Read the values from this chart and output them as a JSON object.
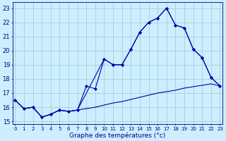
{
  "title": "Graphe des températures (°c)",
  "background_color": "#cceeff",
  "grid_color": "#99cccc",
  "line_color": "#0000aa",
  "x_hours": [
    0,
    1,
    2,
    3,
    4,
    5,
    6,
    7,
    8,
    9,
    10,
    11,
    12,
    13,
    14,
    15,
    16,
    17,
    18,
    19,
    20,
    21,
    22,
    23
  ],
  "line1_y": [
    16.5,
    15.9,
    16.0,
    15.3,
    15.5,
    15.8,
    15.7,
    15.8,
    17.5,
    17.3,
    19.4,
    19.0,
    19.0,
    20.1,
    21.3,
    22.0,
    22.3,
    23.0,
    21.8,
    21.6,
    20.1,
    19.5,
    18.1,
    17.5
  ],
  "line2_x": [
    0,
    1,
    2,
    3,
    4,
    5,
    6,
    7,
    10,
    11,
    12,
    13,
    14,
    15,
    16,
    17,
    18,
    19,
    20,
    21,
    22,
    23
  ],
  "line2_y": [
    16.5,
    15.9,
    16.0,
    15.3,
    15.5,
    15.8,
    15.7,
    15.8,
    19.4,
    19.0,
    19.0,
    20.1,
    21.3,
    22.0,
    22.3,
    23.0,
    21.8,
    21.6,
    20.1,
    19.5,
    18.1,
    17.5
  ],
  "line3_y": [
    16.5,
    15.9,
    16.0,
    15.3,
    15.5,
    15.8,
    15.7,
    15.8,
    15.9,
    16.0,
    16.15,
    16.3,
    16.4,
    16.55,
    16.7,
    16.85,
    17.0,
    17.1,
    17.2,
    17.35,
    17.45,
    17.55,
    17.65,
    17.5
  ],
  "ylim": [
    14.8,
    23.4
  ],
  "yticks": [
    15,
    16,
    17,
    18,
    19,
    20,
    21,
    22,
    23
  ],
  "xlim": [
    -0.3,
    23.3
  ],
  "xtick_fontsize": 5.0,
  "ytick_fontsize": 6.0,
  "xlabel_fontsize": 6.5
}
